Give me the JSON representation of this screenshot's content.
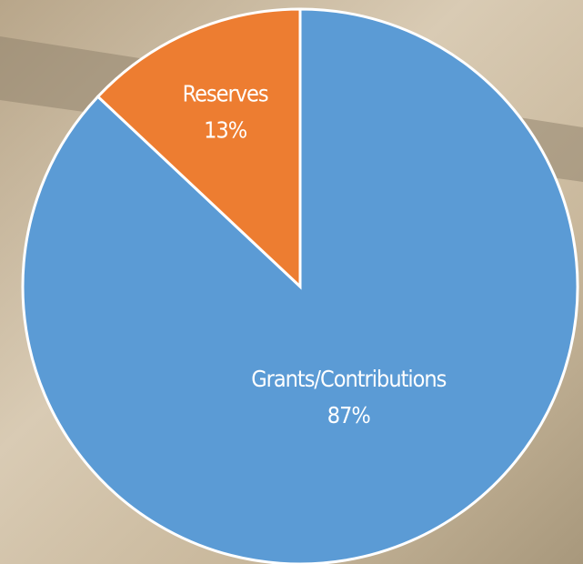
{
  "chart_data": {
    "type": "pie",
    "categories": [
      "Grants/Contributions",
      "Reserves"
    ],
    "values": [
      87,
      13
    ],
    "value_labels": [
      "87%",
      "13%"
    ],
    "colors": [
      "#5b9bd5",
      "#ed7d31"
    ]
  }
}
